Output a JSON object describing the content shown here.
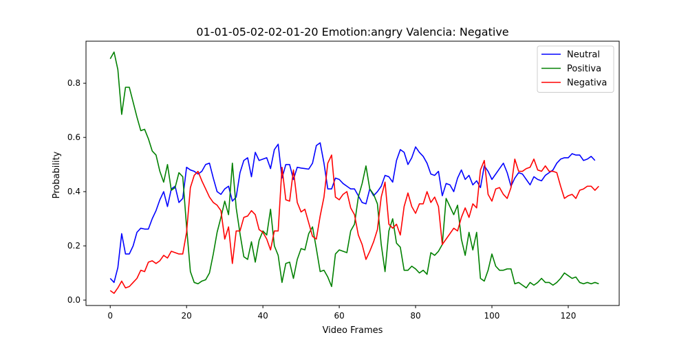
{
  "chart_data": {
    "type": "line",
    "title": "01-01-05-02-02-01-20 Emotion:angry Valencia: Negative",
    "xlabel": "Video Frames",
    "ylabel": "Probability",
    "xlim": [
      -6.35,
      133.35
    ],
    "ylim": [
      -0.02,
      0.955
    ],
    "xticks": [
      0,
      20,
      40,
      60,
      80,
      100,
      120
    ],
    "yticks": [
      0.0,
      0.2,
      0.4,
      0.6,
      0.8
    ],
    "ytick_labels": [
      "0.0",
      "0.2",
      "0.4",
      "0.6",
      "0.8"
    ],
    "grid": false,
    "legend_position": "top-right",
    "series": [
      {
        "name": "Neutral",
        "color": "#0000ff",
        "values": [
          0.08,
          0.065,
          0.12,
          0.245,
          0.17,
          0.17,
          0.2,
          0.25,
          0.265,
          0.262,
          0.262,
          0.3,
          0.33,
          0.37,
          0.4,
          0.345,
          0.41,
          0.42,
          0.36,
          0.375,
          0.49,
          0.48,
          0.475,
          0.465,
          0.475,
          0.5,
          0.505,
          0.45,
          0.4,
          0.39,
          0.41,
          0.42,
          0.365,
          0.38,
          0.47,
          0.515,
          0.525,
          0.455,
          0.545,
          0.515,
          0.52,
          0.525,
          0.485,
          0.555,
          0.575,
          0.45,
          0.5,
          0.5,
          0.445,
          0.49,
          0.487,
          0.485,
          0.483,
          0.505,
          0.57,
          0.58,
          0.505,
          0.41,
          0.41,
          0.45,
          0.445,
          0.43,
          0.42,
          0.41,
          0.41,
          0.385,
          0.36,
          0.355,
          0.41,
          0.385,
          0.4,
          0.42,
          0.46,
          0.455,
          0.435,
          0.515,
          0.555,
          0.545,
          0.5,
          0.525,
          0.565,
          0.545,
          0.53,
          0.505,
          0.465,
          0.46,
          0.475,
          0.385,
          0.43,
          0.425,
          0.4,
          0.45,
          0.48,
          0.445,
          0.46,
          0.425,
          0.44,
          0.415,
          0.495,
          0.475,
          0.445,
          0.465,
          0.485,
          0.505,
          0.47,
          0.42,
          0.45,
          0.47,
          0.465,
          0.445,
          0.425,
          0.455,
          0.445,
          0.44,
          0.46,
          0.47,
          0.48,
          0.505,
          0.52,
          0.525,
          0.525,
          0.54,
          0.535,
          0.535,
          0.515,
          0.52,
          0.53,
          0.515
        ]
      },
      {
        "name": "Positiva",
        "color": "#008000",
        "values": [
          0.89,
          0.915,
          0.85,
          0.685,
          0.785,
          0.785,
          0.73,
          0.675,
          0.625,
          0.63,
          0.595,
          0.55,
          0.535,
          0.475,
          0.435,
          0.5,
          0.405,
          0.415,
          0.47,
          0.455,
          0.27,
          0.105,
          0.065,
          0.06,
          0.07,
          0.075,
          0.1,
          0.17,
          0.25,
          0.305,
          0.365,
          0.315,
          0.505,
          0.34,
          0.245,
          0.16,
          0.15,
          0.215,
          0.14,
          0.22,
          0.255,
          0.24,
          0.335,
          0.2,
          0.165,
          0.065,
          0.135,
          0.14,
          0.08,
          0.15,
          0.19,
          0.185,
          0.245,
          0.27,
          0.19,
          0.105,
          0.11,
          0.085,
          0.05,
          0.17,
          0.185,
          0.18,
          0.175,
          0.255,
          0.28,
          0.38,
          0.43,
          0.495,
          0.41,
          0.39,
          0.355,
          0.205,
          0.105,
          0.255,
          0.3,
          0.21,
          0.195,
          0.11,
          0.11,
          0.125,
          0.115,
          0.1,
          0.11,
          0.095,
          0.175,
          0.165,
          0.18,
          0.205,
          0.375,
          0.345,
          0.315,
          0.35,
          0.225,
          0.165,
          0.25,
          0.185,
          0.25,
          0.08,
          0.07,
          0.11,
          0.17,
          0.125,
          0.11,
          0.11,
          0.115,
          0.115,
          0.06,
          0.065,
          0.055,
          0.045,
          0.065,
          0.055,
          0.065,
          0.08,
          0.065,
          0.065,
          0.055,
          0.065,
          0.08,
          0.1,
          0.09,
          0.08,
          0.085,
          0.065,
          0.06,
          0.065,
          0.06,
          0.065,
          0.06
        ]
      },
      {
        "name": "Negativa",
        "color": "#ff0000",
        "values": [
          0.035,
          0.025,
          0.045,
          0.07,
          0.045,
          0.05,
          0.065,
          0.08,
          0.11,
          0.105,
          0.14,
          0.145,
          0.135,
          0.145,
          0.165,
          0.155,
          0.18,
          0.175,
          0.17,
          0.17,
          0.25,
          0.415,
          0.46,
          0.475,
          0.44,
          0.41,
          0.38,
          0.36,
          0.35,
          0.33,
          0.225,
          0.27,
          0.135,
          0.255,
          0.255,
          0.305,
          0.31,
          0.33,
          0.315,
          0.26,
          0.25,
          0.225,
          0.185,
          0.255,
          0.255,
          0.49,
          0.37,
          0.365,
          0.48,
          0.36,
          0.325,
          0.335,
          0.285,
          0.235,
          0.225,
          0.31,
          0.38,
          0.505,
          0.535,
          0.38,
          0.37,
          0.39,
          0.4,
          0.34,
          0.315,
          0.24,
          0.205,
          0.15,
          0.18,
          0.215,
          0.26,
          0.38,
          0.435,
          0.28,
          0.265,
          0.28,
          0.24,
          0.345,
          0.395,
          0.345,
          0.32,
          0.355,
          0.355,
          0.4,
          0.36,
          0.38,
          0.345,
          0.205,
          0.225,
          0.245,
          0.265,
          0.255,
          0.305,
          0.34,
          0.305,
          0.355,
          0.34,
          0.48,
          0.515,
          0.39,
          0.365,
          0.41,
          0.415,
          0.39,
          0.375,
          0.415,
          0.52,
          0.475,
          0.475,
          0.485,
          0.49,
          0.52,
          0.48,
          0.475,
          0.495,
          0.475,
          0.475,
          0.47,
          0.42,
          0.375,
          0.385,
          0.39,
          0.375,
          0.405,
          0.41,
          0.42,
          0.42,
          0.405,
          0.42
        ]
      }
    ]
  }
}
